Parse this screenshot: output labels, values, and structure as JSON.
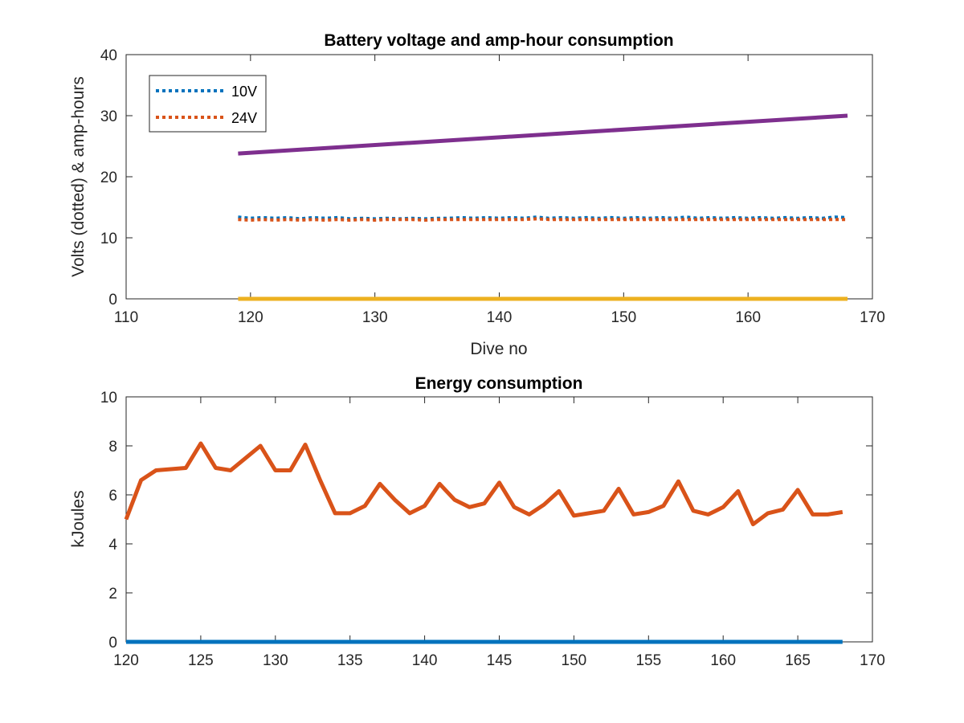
{
  "chart_data": [
    {
      "type": "line",
      "title": "Battery voltage and amp-hour consumption",
      "xlabel": "Dive no",
      "ylabel": "Volts (dotted) & amp-hours",
      "xlim": [
        110,
        170
      ],
      "ylim": [
        0,
        40
      ],
      "xticks": [
        110,
        120,
        130,
        140,
        150,
        160,
        170
      ],
      "yticks": [
        0,
        10,
        20,
        30,
        40
      ],
      "grid": false,
      "legend_position": "top-left",
      "series": [
        {
          "name": "10V",
          "color": "#0072BD",
          "style": "dotted",
          "x": [
            119,
            120,
            121,
            122,
            123,
            124,
            125,
            126,
            127,
            128,
            129,
            130,
            131,
            132,
            133,
            134,
            135,
            136,
            137,
            138,
            139,
            140,
            141,
            142,
            143,
            144,
            145,
            146,
            147,
            148,
            149,
            150,
            151,
            152,
            153,
            154,
            155,
            156,
            157,
            158,
            159,
            160,
            161,
            162,
            163,
            164,
            165,
            166,
            167,
            168
          ],
          "y": [
            13.4,
            13.2,
            13.3,
            13.2,
            13.3,
            13.1,
            13.3,
            13.2,
            13.3,
            13.1,
            13.2,
            13.1,
            13.2,
            13.1,
            13.2,
            13.1,
            13.2,
            13.2,
            13.3,
            13.2,
            13.3,
            13.2,
            13.3,
            13.2,
            13.4,
            13.2,
            13.3,
            13.2,
            13.3,
            13.2,
            13.3,
            13.2,
            13.3,
            13.2,
            13.3,
            13.2,
            13.4,
            13.2,
            13.3,
            13.2,
            13.3,
            13.2,
            13.3,
            13.2,
            13.3,
            13.2,
            13.3,
            13.2,
            13.4,
            13.3
          ]
        },
        {
          "name": "24V",
          "color": "#D95319",
          "style": "dotted",
          "x": [
            119,
            120,
            121,
            122,
            123,
            124,
            125,
            126,
            127,
            128,
            129,
            130,
            131,
            132,
            133,
            134,
            135,
            136,
            137,
            138,
            139,
            140,
            141,
            142,
            143,
            144,
            145,
            146,
            147,
            148,
            149,
            150,
            151,
            152,
            153,
            154,
            155,
            156,
            157,
            158,
            159,
            160,
            161,
            162,
            163,
            164,
            165,
            166,
            167,
            168
          ],
          "y": [
            13.0,
            12.9,
            13.0,
            12.9,
            13.0,
            12.9,
            13.0,
            12.9,
            13.0,
            12.9,
            13.0,
            12.9,
            13.0,
            13.0,
            13.0,
            12.9,
            13.0,
            13.0,
            13.0,
            13.0,
            13.0,
            13.0,
            13.0,
            13.0,
            13.1,
            13.0,
            13.0,
            13.0,
            13.0,
            13.0,
            13.0,
            13.0,
            13.0,
            13.0,
            13.0,
            13.0,
            13.0,
            13.0,
            13.0,
            13.0,
            13.0,
            13.0,
            13.0,
            13.0,
            13.0,
            13.0,
            13.0,
            13.0,
            13.0,
            13.0
          ]
        },
        {
          "color": "#EDB120",
          "style": "solid",
          "x": [
            119,
            168
          ],
          "y": [
            0,
            0
          ]
        },
        {
          "color": "#7E2F8E",
          "style": "solid",
          "x": [
            119,
            168
          ],
          "y": [
            23.8,
            30.0
          ]
        }
      ],
      "legend": [
        {
          "label": "10V",
          "color": "#0072BD"
        },
        {
          "label": "24V",
          "color": "#D95319"
        }
      ]
    },
    {
      "type": "line",
      "title": "Energy consumption",
      "xlabel": "",
      "ylabel": "kJoules",
      "xlim": [
        120,
        170
      ],
      "ylim": [
        0,
        10
      ],
      "xticks": [
        120,
        125,
        130,
        135,
        140,
        145,
        150,
        155,
        160,
        165,
        170
      ],
      "yticks": [
        0,
        2,
        4,
        6,
        8,
        10
      ],
      "grid": false,
      "series": [
        {
          "color": "#0072BD",
          "style": "solid",
          "x": [
            120,
            168
          ],
          "y": [
            0,
            0
          ]
        },
        {
          "color": "#D95319",
          "style": "solid",
          "x": [
            120,
            121,
            122,
            123,
            124,
            125,
            126,
            127,
            128,
            129,
            130,
            131,
            132,
            133,
            134,
            135,
            136,
            137,
            138,
            139,
            140,
            141,
            142,
            143,
            144,
            145,
            146,
            147,
            148,
            149,
            150,
            151,
            152,
            153,
            154,
            155,
            156,
            157,
            158,
            159,
            160,
            161,
            162,
            163,
            164,
            165,
            166,
            167,
            168
          ],
          "y": [
            5.0,
            6.6,
            7.0,
            7.05,
            7.1,
            8.1,
            7.1,
            7.0,
            7.5,
            8.0,
            7.0,
            7.0,
            8.05,
            6.6,
            5.25,
            5.25,
            5.55,
            6.45,
            5.8,
            5.25,
            5.55,
            6.45,
            5.8,
            5.5,
            5.65,
            6.5,
            5.5,
            5.2,
            5.6,
            6.15,
            5.15,
            5.25,
            5.35,
            6.25,
            5.2,
            5.3,
            5.55,
            6.55,
            5.35,
            5.2,
            5.5,
            6.15,
            4.8,
            5.25,
            5.4,
            6.2,
            5.2,
            5.2,
            5.3
          ]
        }
      ]
    }
  ]
}
